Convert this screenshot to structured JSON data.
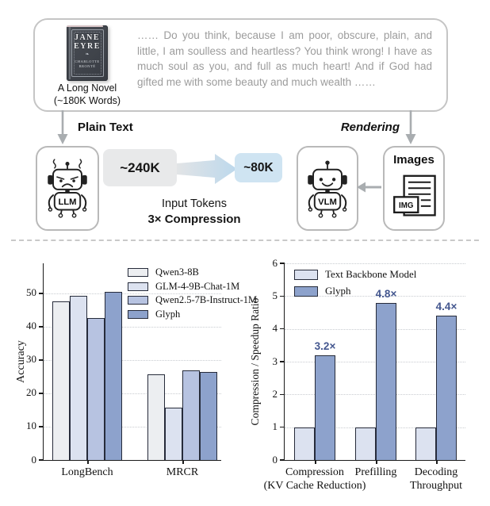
{
  "diagram": {
    "book": {
      "title_line1": "JANE",
      "title_line2": "EYRE",
      "ornament": "❧",
      "author": "CHARLOTTE BRONTË",
      "caption_line1": "A Long Novel",
      "caption_line2": "(~180K Words)"
    },
    "quote": "…… Do you think, because I am poor, obscure, plain, and little, I am soulless and heartless? You think wrong! I have as much soul as you, and full as much heart! And if God had gifted me with some beauty and much wealth ……",
    "plain_text_label": "Plain Text",
    "rendering_label": "Rendering",
    "llm_label": "LLM",
    "vlm_label": "VLM",
    "images_label": "Images",
    "img_badge": "IMG",
    "tokens_before": "~240K",
    "tokens_after": "~80K",
    "input_tokens_label": "Input Tokens",
    "compression_label": "3× Compression"
  },
  "icons": {
    "book": "jane-eyre-book-cover",
    "llm_robot": "sad-robot-icon",
    "vlm_robot": "happy-robot-icon",
    "images_doc": "image-document-icon",
    "down_arrow": "down-arrow-icon",
    "left_arrow": "left-arrow-icon",
    "compression_arrow": "tapered-compression-arrow-icon"
  },
  "colors": {
    "bar_series": [
      "#eceef1",
      "#dce2f0",
      "#b7c3e1",
      "#8da2cc"
    ],
    "bar_border": "#262b3a",
    "value_label": "#44578f",
    "token_before_bg": "#e8e9ea",
    "token_after_bg": "#cfe4f2",
    "arrow_gray": "#a9adb0",
    "grid_line": "#c8cbd0"
  },
  "chart_data": [
    {
      "type": "bar",
      "title": "",
      "xlabel": "",
      "ylabel": "Accuracy",
      "ylim": [
        0,
        59
      ],
      "yticks": [
        0,
        10,
        20,
        30,
        40,
        50
      ],
      "grid": "dotted-horizontal",
      "legend_position": "upper-right",
      "categories": [
        "LongBench",
        "MRCR"
      ],
      "series": [
        {
          "name": "Qwen3-8B",
          "color": "#eceef1",
          "values": [
            47.5,
            25.8
          ]
        },
        {
          "name": "GLM-4-9B-Chat-1M",
          "color": "#dce2f0",
          "values": [
            49.2,
            15.8
          ]
        },
        {
          "name": "Qwen2.5-7B-Instruct-1M",
          "color": "#b7c3e1",
          "values": [
            42.5,
            26.9
          ]
        },
        {
          "name": "Glyph",
          "color": "#8da2cc",
          "values": [
            50.5,
            26.3
          ]
        }
      ]
    },
    {
      "type": "bar",
      "title": "",
      "xlabel": "",
      "ylabel": "Compression / Speedup Ratio",
      "ylim": [
        0,
        6
      ],
      "yticks": [
        0,
        1,
        2,
        3,
        4,
        5,
        6
      ],
      "grid": "dotted-horizontal",
      "legend_position": "upper-left",
      "categories": [
        "Compression\n(KV Cache Reduction)",
        "Prefilling",
        "Decoding\nThroughput"
      ],
      "series": [
        {
          "name": "Text Backbone Model",
          "color": "#dce2f0",
          "values": [
            1.0,
            1.0,
            1.0
          ]
        },
        {
          "name": "Glyph",
          "color": "#8da2cc",
          "values": [
            3.2,
            4.8,
            4.4
          ],
          "labels": [
            "3.2×",
            "4.8×",
            "4.4×"
          ]
        }
      ]
    }
  ]
}
